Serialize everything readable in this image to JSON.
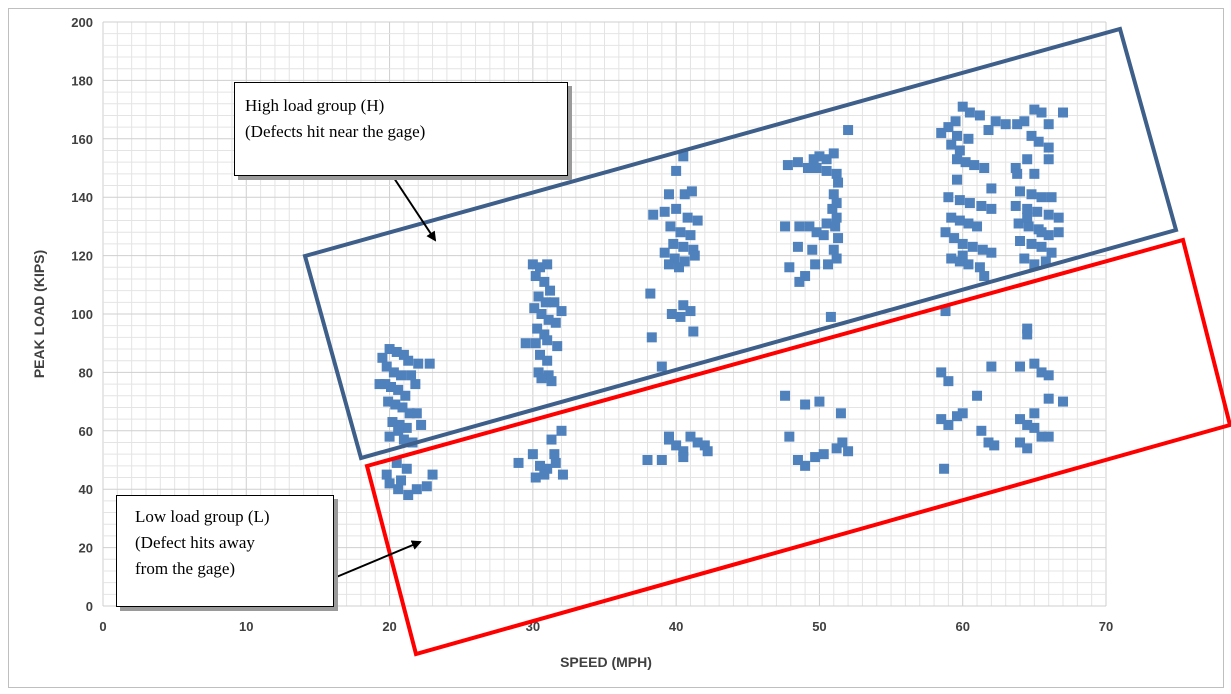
{
  "chart_data": {
    "type": "scatter",
    "xlabel": "SPEED (MPH)",
    "ylabel": "PEAK LOAD (KIPS)",
    "xlim": [
      0,
      70
    ],
    "ylim": [
      0,
      200
    ],
    "xticks": [
      "0",
      "10",
      "20",
      "30",
      "40",
      "50",
      "60",
      "70"
    ],
    "yticks": [
      "0",
      "20",
      "40",
      "60",
      "80",
      "100",
      "120",
      "140",
      "160",
      "180",
      "200"
    ],
    "grid": true,
    "marker_color": "#4f81bd",
    "series": [
      {
        "points": [
          [
            19.5,
            85
          ],
          [
            20.0,
            88
          ],
          [
            20.5,
            87
          ],
          [
            21.0,
            86
          ],
          [
            19.8,
            82
          ],
          [
            20.3,
            80
          ],
          [
            20.8,
            79
          ],
          [
            21.3,
            84
          ],
          [
            19.7,
            76
          ],
          [
            20.1,
            75
          ],
          [
            20.6,
            74
          ],
          [
            21.1,
            72
          ],
          [
            19.9,
            70
          ],
          [
            20.4,
            69
          ],
          [
            20.9,
            68
          ],
          [
            21.4,
            66
          ],
          [
            20.2,
            63
          ],
          [
            20.7,
            62
          ],
          [
            21.2,
            61
          ],
          [
            20.6,
            60
          ],
          [
            22.0,
            83
          ],
          [
            22.8,
            83
          ],
          [
            21.8,
            76
          ],
          [
            21.9,
            66
          ],
          [
            22.2,
            62
          ],
          [
            21.0,
            57
          ],
          [
            21.6,
            56
          ],
          [
            20.0,
            58
          ],
          [
            19.3,
            76
          ],
          [
            21.5,
            79
          ],
          [
            19.8,
            45
          ],
          [
            20.5,
            49
          ],
          [
            21.2,
            47
          ],
          [
            20.0,
            42
          ],
          [
            20.6,
            40
          ],
          [
            21.3,
            38
          ],
          [
            21.9,
            40
          ],
          [
            22.6,
            41
          ],
          [
            23.0,
            45
          ],
          [
            20.8,
            43
          ],
          [
            30.0,
            117
          ],
          [
            30.5,
            116
          ],
          [
            31.0,
            117
          ],
          [
            30.2,
            113
          ],
          [
            30.8,
            111
          ],
          [
            31.2,
            108
          ],
          [
            30.4,
            106
          ],
          [
            30.9,
            104
          ],
          [
            31.5,
            104
          ],
          [
            30.1,
            102
          ],
          [
            30.6,
            100
          ],
          [
            31.1,
            98
          ],
          [
            31.6,
            97
          ],
          [
            30.3,
            95
          ],
          [
            30.8,
            93
          ],
          [
            29.5,
            90
          ],
          [
            30.2,
            90
          ],
          [
            31.0,
            91
          ],
          [
            31.7,
            89
          ],
          [
            30.5,
            86
          ],
          [
            31.0,
            84
          ],
          [
            30.4,
            80
          ],
          [
            31.1,
            79
          ],
          [
            30.6,
            78
          ],
          [
            31.3,
            77
          ],
          [
            32.0,
            101
          ],
          [
            29.0,
            49
          ],
          [
            30.0,
            52
          ],
          [
            30.5,
            48
          ],
          [
            31.0,
            47
          ],
          [
            31.5,
            52
          ],
          [
            32.0,
            60
          ],
          [
            30.2,
            44
          ],
          [
            30.8,
            45
          ],
          [
            31.3,
            57
          ],
          [
            32.1,
            45
          ],
          [
            31.6,
            49
          ],
          [
            40.5,
            154
          ],
          [
            40.0,
            149
          ],
          [
            39.5,
            141
          ],
          [
            40.6,
            141
          ],
          [
            41.1,
            142
          ],
          [
            38.4,
            134
          ],
          [
            39.2,
            135
          ],
          [
            40.0,
            136
          ],
          [
            40.8,
            133
          ],
          [
            41.5,
            132
          ],
          [
            39.6,
            130
          ],
          [
            40.3,
            128
          ],
          [
            41.0,
            127
          ],
          [
            39.8,
            124
          ],
          [
            40.5,
            123
          ],
          [
            41.2,
            122
          ],
          [
            39.2,
            121
          ],
          [
            39.9,
            119
          ],
          [
            40.6,
            118
          ],
          [
            41.3,
            120
          ],
          [
            39.5,
            117
          ],
          [
            40.2,
            116
          ],
          [
            38.2,
            107
          ],
          [
            40.5,
            103
          ],
          [
            41.0,
            101
          ],
          [
            39.7,
            100
          ],
          [
            40.3,
            99
          ],
          [
            41.2,
            94
          ],
          [
            38.3,
            92
          ],
          [
            39.0,
            82
          ],
          [
            38.0,
            50
          ],
          [
            39.0,
            50
          ],
          [
            39.5,
            58
          ],
          [
            40.0,
            55
          ],
          [
            40.5,
            53
          ],
          [
            41.0,
            58
          ],
          [
            41.5,
            56
          ],
          [
            42.0,
            55
          ],
          [
            42.2,
            53
          ],
          [
            39.5,
            57
          ],
          [
            40.5,
            51
          ],
          [
            49.6,
            153
          ],
          [
            50.0,
            154
          ],
          [
            50.5,
            153
          ],
          [
            51.0,
            155
          ],
          [
            52.0,
            163
          ],
          [
            47.8,
            151
          ],
          [
            48.5,
            152
          ],
          [
            49.2,
            150
          ],
          [
            49.8,
            150
          ],
          [
            50.5,
            149
          ],
          [
            51.2,
            148
          ],
          [
            51.3,
            145
          ],
          [
            51.0,
            141
          ],
          [
            51.2,
            138
          ],
          [
            50.9,
            136
          ],
          [
            51.2,
            133
          ],
          [
            50.5,
            131
          ],
          [
            51.1,
            130
          ],
          [
            47.6,
            130
          ],
          [
            48.6,
            130
          ],
          [
            49.3,
            130
          ],
          [
            49.8,
            128
          ],
          [
            50.3,
            127
          ],
          [
            48.5,
            123
          ],
          [
            49.5,
            122
          ],
          [
            51.3,
            126
          ],
          [
            51.0,
            122
          ],
          [
            51.2,
            119
          ],
          [
            50.6,
            117
          ],
          [
            49.7,
            117
          ],
          [
            47.9,
            116
          ],
          [
            49.0,
            113
          ],
          [
            48.6,
            111
          ],
          [
            50.8,
            99
          ],
          [
            47.6,
            72
          ],
          [
            49.0,
            69
          ],
          [
            50.0,
            70
          ],
          [
            51.5,
            66
          ],
          [
            47.9,
            58
          ],
          [
            49.0,
            48
          ],
          [
            49.7,
            51
          ],
          [
            50.3,
            52
          ],
          [
            51.2,
            54
          ],
          [
            51.6,
            56
          ],
          [
            52.0,
            53
          ],
          [
            48.5,
            50
          ],
          [
            58.5,
            162
          ],
          [
            59.0,
            164
          ],
          [
            59.5,
            166
          ],
          [
            60.0,
            171
          ],
          [
            60.5,
            169
          ],
          [
            61.2,
            168
          ],
          [
            61.8,
            163
          ],
          [
            62.3,
            166
          ],
          [
            59.6,
            161
          ],
          [
            60.4,
            160
          ],
          [
            59.2,
            158
          ],
          [
            59.8,
            156
          ],
          [
            59.6,
            153
          ],
          [
            60.2,
            152
          ],
          [
            60.8,
            151
          ],
          [
            61.5,
            150
          ],
          [
            59.6,
            146
          ],
          [
            62.0,
            143
          ],
          [
            59.0,
            140
          ],
          [
            59.8,
            139
          ],
          [
            60.5,
            138
          ],
          [
            61.3,
            137
          ],
          [
            62.0,
            136
          ],
          [
            59.2,
            133
          ],
          [
            59.8,
            132
          ],
          [
            60.4,
            131
          ],
          [
            61.0,
            130
          ],
          [
            58.8,
            128
          ],
          [
            59.4,
            126
          ],
          [
            60.0,
            124
          ],
          [
            60.7,
            123
          ],
          [
            61.4,
            122
          ],
          [
            62.0,
            121
          ],
          [
            59.2,
            119
          ],
          [
            59.8,
            118
          ],
          [
            60.4,
            117
          ],
          [
            61.2,
            116
          ],
          [
            61.5,
            113
          ],
          [
            58.8,
            101
          ],
          [
            60.0,
            120
          ],
          [
            63.0,
            165
          ],
          [
            63.8,
            165
          ],
          [
            64.3,
            166
          ],
          [
            65.0,
            170
          ],
          [
            65.5,
            169
          ],
          [
            66.0,
            165
          ],
          [
            67.0,
            169
          ],
          [
            64.8,
            161
          ],
          [
            65.3,
            159
          ],
          [
            66.0,
            157
          ],
          [
            63.7,
            150
          ],
          [
            64.5,
            153
          ],
          [
            65.0,
            148
          ],
          [
            66.0,
            153
          ],
          [
            63.8,
            148
          ],
          [
            64.0,
            142
          ],
          [
            64.8,
            141
          ],
          [
            65.5,
            140
          ],
          [
            66.2,
            140
          ],
          [
            63.7,
            137
          ],
          [
            64.5,
            136
          ],
          [
            65.2,
            135
          ],
          [
            66.0,
            134
          ],
          [
            66.7,
            133
          ],
          [
            63.9,
            131
          ],
          [
            64.6,
            130
          ],
          [
            65.3,
            129
          ],
          [
            66.0,
            127
          ],
          [
            66.7,
            128
          ],
          [
            64.0,
            125
          ],
          [
            64.8,
            124
          ],
          [
            65.5,
            123
          ],
          [
            66.2,
            121
          ],
          [
            64.3,
            119
          ],
          [
            65.0,
            117
          ],
          [
            65.8,
            118
          ],
          [
            64.5,
            95
          ],
          [
            64.5,
            93
          ],
          [
            65.5,
            128
          ],
          [
            64.5,
            133
          ],
          [
            58.5,
            80
          ],
          [
            59.0,
            77
          ],
          [
            62.0,
            82
          ],
          [
            64.0,
            82
          ],
          [
            65.0,
            83
          ],
          [
            65.5,
            80
          ],
          [
            66.0,
            79
          ],
          [
            65.0,
            66
          ],
          [
            66.0,
            71
          ],
          [
            67.0,
            70
          ],
          [
            58.5,
            64
          ],
          [
            59.0,
            62
          ],
          [
            59.6,
            65
          ],
          [
            60.0,
            66
          ],
          [
            61.0,
            72
          ],
          [
            61.3,
            60
          ],
          [
            61.8,
            56
          ],
          [
            62.2,
            55
          ],
          [
            64.0,
            64
          ],
          [
            64.5,
            62
          ],
          [
            65.0,
            61
          ],
          [
            65.5,
            58
          ],
          [
            66.0,
            58
          ],
          [
            64.0,
            56
          ],
          [
            64.5,
            54
          ],
          [
            58.7,
            47
          ]
        ]
      }
    ]
  },
  "annotations": {
    "high_group": {
      "lines": [
        "High load group (H)",
        "(Defects hit near the gage)"
      ],
      "box_color": "#3e5f8a"
    },
    "low_group": {
      "lines": [
        "Low load group (L)",
        "(Defect hits away",
        "from the gage)"
      ],
      "box_color": "#ff0000"
    }
  }
}
